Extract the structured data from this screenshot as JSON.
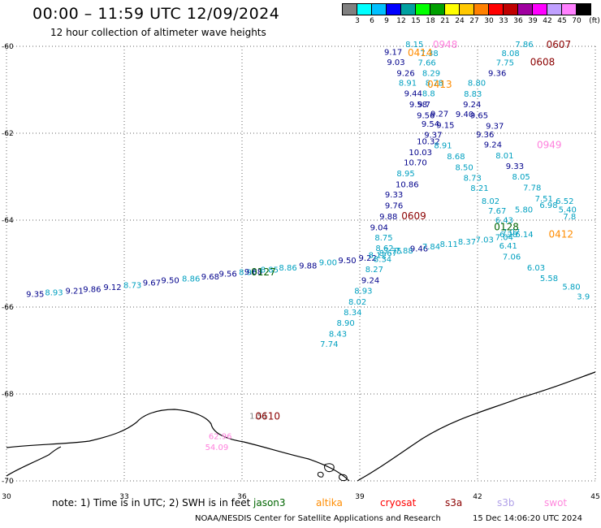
{
  "header": {
    "title": "00:00 – 11:59 UTC 12/09/2024",
    "subtitle": "12 hour collection of altimeter wave heights"
  },
  "legend": {
    "unit": "(ft)",
    "colors": [
      "#808080",
      "#00ffff",
      "#00c0ff",
      "#0000ff",
      "#00a0a0",
      "#00ff00",
      "#00a000",
      "#ffff00",
      "#ffc800",
      "#ff8000",
      "#ff0000",
      "#c00000",
      "#a000a0",
      "#ff00ff",
      "#c0a0ff",
      "#ff80ff",
      "#000000"
    ],
    "labels": [
      "3",
      "6",
      "9",
      "12",
      "15",
      "18",
      "21",
      "24",
      "27",
      "30",
      "33",
      "36",
      "39",
      "42",
      "45",
      "70"
    ]
  },
  "map": {
    "lon_range": [
      30,
      45
    ],
    "lat_range": [
      -60,
      -70
    ],
    "lon_ticks": [
      "30",
      "33",
      "36",
      "39",
      "42",
      "45"
    ],
    "lat_ticks": [
      "-60",
      "-62",
      "-64",
      "-66",
      "-68",
      "-70"
    ],
    "grid": "dotted"
  },
  "points": [
    {
      "lon": 30.5,
      "lat": -65.77,
      "v": "9.35",
      "c": "#00008b"
    },
    {
      "lon": 30.98,
      "lat": -65.73,
      "v": "8.93",
      "c": "#00a0c0"
    },
    {
      "lon": 31.5,
      "lat": -65.69,
      "v": "9.21",
      "c": "#00008b"
    },
    {
      "lon": 31.95,
      "lat": -65.65,
      "v": "9.86",
      "c": "#00008b"
    },
    {
      "lon": 32.47,
      "lat": -65.61,
      "v": "9.12",
      "c": "#00008b"
    },
    {
      "lon": 32.98,
      "lat": -65.56,
      "v": "8.73",
      "c": "#00a0c0"
    },
    {
      "lon": 33.47,
      "lat": -65.5,
      "v": "9.67",
      "c": "#00008b"
    },
    {
      "lon": 33.94,
      "lat": -65.45,
      "v": "9.50",
      "c": "#00008b"
    },
    {
      "lon": 34.47,
      "lat": -65.41,
      "v": "8.86",
      "c": "#00a0c0"
    },
    {
      "lon": 34.96,
      "lat": -65.36,
      "v": "9.68",
      "c": "#00008b"
    },
    {
      "lon": 35.41,
      "lat": -65.3,
      "v": "9.56",
      "c": "#00008b"
    },
    {
      "lon": 35.92,
      "lat": -65.26,
      "v": "8.96",
      "c": "#00a0c0"
    },
    {
      "lon": 36.06,
      "lat": -65.25,
      "v": "9.68",
      "c": "#00008b"
    },
    {
      "lon": 36.47,
      "lat": -65.21,
      "v": "8.85",
      "c": "#00a0c0"
    },
    {
      "lon": 36.94,
      "lat": -65.16,
      "v": "8.86",
      "c": "#00a0c0"
    },
    {
      "lon": 37.45,
      "lat": -65.11,
      "v": "9.88",
      "c": "#00008b"
    },
    {
      "lon": 37.96,
      "lat": -65.04,
      "v": "9.00",
      "c": "#00a0c0"
    },
    {
      "lon": 38.45,
      "lat": -64.99,
      "v": "9.50",
      "c": "#00008b"
    },
    {
      "lon": 38.97,
      "lat": -64.93,
      "v": "9.22",
      "c": "#00008b"
    },
    {
      "lon": 39.22,
      "lat": -64.87,
      "v": "8.12",
      "c": "#00a0c0"
    },
    {
      "lon": 39.49,
      "lat": -64.82,
      "v": "8.67",
      "c": "#00a0c0"
    },
    {
      "lon": 39.61,
      "lat": -64.78,
      "v": "7.75",
      "c": "#00a0c0"
    },
    {
      "lon": 39.9,
      "lat": -64.77,
      "v": "7.88",
      "c": "#00a0c0"
    },
    {
      "lon": 40.28,
      "lat": -64.72,
      "v": "9.46",
      "c": "#00008b"
    },
    {
      "lon": 40.59,
      "lat": -64.67,
      "v": "7.84",
      "c": "#00a0c0"
    },
    {
      "lon": 41.04,
      "lat": -64.62,
      "v": "8.11",
      "c": "#00a0c0"
    },
    {
      "lon": 41.5,
      "lat": -64.56,
      "v": "8.37",
      "c": "#00a0c0"
    },
    {
      "lon": 41.95,
      "lat": -64.51,
      "v": "7.03",
      "c": "#00a0c0"
    },
    {
      "lon": 42.45,
      "lat": -64.46,
      "v": "7.04",
      "c": "#00a0c0"
    },
    {
      "lon": 42.96,
      "lat": -64.39,
      "v": "6.14",
      "c": "#00a0c0"
    },
    {
      "lon": 40.16,
      "lat": -60.02,
      "v": "8.15",
      "c": "#00a0c0"
    },
    {
      "lon": 40.54,
      "lat": -60.22,
      "v": "7.38",
      "c": "#00a0c0"
    },
    {
      "lon": 39.62,
      "lat": -60.2,
      "v": "9.17",
      "c": "#00008b"
    },
    {
      "lon": 39.69,
      "lat": -60.43,
      "v": "9.03",
      "c": "#00008b"
    },
    {
      "lon": 40.48,
      "lat": -60.44,
      "v": "7.66",
      "c": "#00a0c0"
    },
    {
      "lon": 39.94,
      "lat": -60.68,
      "v": "9.26",
      "c": "#00008b"
    },
    {
      "lon": 40.59,
      "lat": -60.68,
      "v": "8.29",
      "c": "#00a0c0"
    },
    {
      "lon": 39.99,
      "lat": -60.91,
      "v": "8.91",
      "c": "#00a0c0"
    },
    {
      "lon": 40.67,
      "lat": -60.91,
      "v": "8.78",
      "c": "#00a0c0"
    },
    {
      "lon": 40.13,
      "lat": -61.15,
      "v": "9.44",
      "c": "#00008b"
    },
    {
      "lon": 40.59,
      "lat": -61.15,
      "v": "8.8",
      "c": "#00a0c0"
    },
    {
      "lon": 40.26,
      "lat": -61.4,
      "v": "9.58",
      "c": "#00008b"
    },
    {
      "lon": 40.47,
      "lat": -61.4,
      "v": "9.7",
      "c": "#00008b"
    },
    {
      "lon": 40.45,
      "lat": -61.65,
      "v": "9.56",
      "c": "#00008b"
    },
    {
      "lon": 40.8,
      "lat": -61.62,
      "v": "9.27",
      "c": "#00008b"
    },
    {
      "lon": 40.57,
      "lat": -61.85,
      "v": "9.54",
      "c": "#00008b"
    },
    {
      "lon": 40.95,
      "lat": -61.88,
      "v": "9.15",
      "c": "#00008b"
    },
    {
      "lon": 40.64,
      "lat": -62.1,
      "v": "9.37",
      "c": "#00008b"
    },
    {
      "lon": 40.45,
      "lat": -62.25,
      "v": "10.32",
      "c": "#00008b"
    },
    {
      "lon": 40.89,
      "lat": -62.35,
      "v": "8.91",
      "c": "#00a0c0"
    },
    {
      "lon": 40.25,
      "lat": -62.5,
      "v": "10.03",
      "c": "#00008b"
    },
    {
      "lon": 40.12,
      "lat": -62.74,
      "v": "10.70",
      "c": "#00008b"
    },
    {
      "lon": 39.94,
      "lat": -62.99,
      "v": "8.95",
      "c": "#00a0c0"
    },
    {
      "lon": 39.91,
      "lat": -63.24,
      "v": "10.86",
      "c": "#00008b"
    },
    {
      "lon": 39.64,
      "lat": -63.48,
      "v": "9.33",
      "c": "#00008b"
    },
    {
      "lon": 39.64,
      "lat": -63.73,
      "v": "9.76",
      "c": "#00008b"
    },
    {
      "lon": 39.5,
      "lat": -63.98,
      "v": "9.88",
      "c": "#00008b"
    },
    {
      "lon": 39.26,
      "lat": -64.23,
      "v": "9.04",
      "c": "#00008b"
    },
    {
      "lon": 39.38,
      "lat": -64.47,
      "v": "8.75",
      "c": "#00a0c0"
    },
    {
      "lon": 39.4,
      "lat": -64.71,
      "v": "8.62",
      "c": "#00a0c0"
    },
    {
      "lon": 39.35,
      "lat": -64.96,
      "v": "8.34",
      "c": "#00a0c0"
    },
    {
      "lon": 39.14,
      "lat": -65.2,
      "v": "8.27",
      "c": "#00a0c0"
    },
    {
      "lon": 39.04,
      "lat": -65.45,
      "v": "9.24",
      "c": "#00008b"
    },
    {
      "lon": 38.86,
      "lat": -65.69,
      "v": "8.93",
      "c": "#00a0c0"
    },
    {
      "lon": 38.71,
      "lat": -65.94,
      "v": "8.02",
      "c": "#00a0c0"
    },
    {
      "lon": 38.59,
      "lat": -66.19,
      "v": "8.34",
      "c": "#00a0c0"
    },
    {
      "lon": 38.41,
      "lat": -66.43,
      "v": "8.90",
      "c": "#00a0c0"
    },
    {
      "lon": 38.21,
      "lat": -66.68,
      "v": "8.43",
      "c": "#00a0c0"
    },
    {
      "lon": 37.99,
      "lat": -66.92,
      "v": "7.74",
      "c": "#00a0c0"
    },
    {
      "lon": 42.96,
      "lat": -60.02,
      "v": "7.86",
      "c": "#00a0c0"
    },
    {
      "lon": 42.61,
      "lat": -60.22,
      "v": "8.08",
      "c": "#00a0c0"
    },
    {
      "lon": 42.47,
      "lat": -60.44,
      "v": "7.75",
      "c": "#00a0c0"
    },
    {
      "lon": 42.27,
      "lat": -60.68,
      "v": "9.36",
      "c": "#00008b"
    },
    {
      "lon": 41.75,
      "lat": -60.91,
      "v": "8.80",
      "c": "#00a0c0"
    },
    {
      "lon": 41.65,
      "lat": -61.16,
      "v": "8.83",
      "c": "#00a0c0"
    },
    {
      "lon": 41.63,
      "lat": -61.4,
      "v": "9.24",
      "c": "#00008b"
    },
    {
      "lon": 41.81,
      "lat": -61.65,
      "v": "9.65",
      "c": "#00008b"
    },
    {
      "lon": 41.44,
      "lat": -61.63,
      "v": "9.40",
      "c": "#00008b"
    },
    {
      "lon": 42.21,
      "lat": -61.9,
      "v": "9.37",
      "c": "#00008b"
    },
    {
      "lon": 41.96,
      "lat": -62.09,
      "v": "9.36",
      "c": "#00008b"
    },
    {
      "lon": 42.16,
      "lat": -62.33,
      "v": "9.24",
      "c": "#00008b"
    },
    {
      "lon": 41.22,
      "lat": -62.6,
      "v": "8.68",
      "c": "#00a0c0"
    },
    {
      "lon": 42.46,
      "lat": -62.58,
      "v": "8.01",
      "c": "#00a0c0"
    },
    {
      "lon": 41.43,
      "lat": -62.85,
      "v": "8.50",
      "c": "#00a0c0"
    },
    {
      "lon": 42.72,
      "lat": -62.82,
      "v": "9.33",
      "c": "#00008b"
    },
    {
      "lon": 41.64,
      "lat": -63.09,
      "v": "8.73",
      "c": "#00a0c0"
    },
    {
      "lon": 43.16,
      "lat": -63.32,
      "v": "7.78",
      "c": "#00a0c0"
    },
    {
      "lon": 42.88,
      "lat": -63.07,
      "v": "8.05",
      "c": "#00a0c0"
    },
    {
      "lon": 41.82,
      "lat": -63.33,
      "v": "8.21",
      "c": "#00a0c0"
    },
    {
      "lon": 43.46,
      "lat": -63.57,
      "v": "7.51",
      "c": "#00a0c0"
    },
    {
      "lon": 42.1,
      "lat": -63.63,
      "v": "8.02",
      "c": "#00a0c0"
    },
    {
      "lon": 43.58,
      "lat": -63.72,
      "v": "6.98",
      "c": "#00a0c0"
    },
    {
      "lon": 43.99,
      "lat": -63.63,
      "v": "6.52",
      "c": "#00a0c0"
    },
    {
      "lon": 42.95,
      "lat": -63.82,
      "v": "5.80",
      "c": "#00a0c0"
    },
    {
      "lon": 44.06,
      "lat": -63.82,
      "v": "5.40",
      "c": "#00a0c0"
    },
    {
      "lon": 42.27,
      "lat": -63.85,
      "v": "7.67",
      "c": "#00a0c0"
    },
    {
      "lon": 44.18,
      "lat": -63.98,
      "v": "7.8",
      "c": "#00a0c0"
    },
    {
      "lon": 42.45,
      "lat": -64.07,
      "v": "6.43",
      "c": "#00a0c0"
    },
    {
      "lon": 42.62,
      "lat": -64.34,
      "v": "7.07",
      "c": "#00a0c0"
    },
    {
      "lon": 42.56,
      "lat": -64.39,
      "v": "6.28",
      "c": "#00a0c0"
    },
    {
      "lon": 42.55,
      "lat": -64.65,
      "v": "6.41",
      "c": "#00a0c0"
    },
    {
      "lon": 42.64,
      "lat": -64.91,
      "v": "7.06",
      "c": "#00a0c0"
    },
    {
      "lon": 43.26,
      "lat": -65.16,
      "v": "6.03",
      "c": "#00a0c0"
    },
    {
      "lon": 43.59,
      "lat": -65.4,
      "v": "5.58",
      "c": "#00a0c0"
    },
    {
      "lon": 44.16,
      "lat": -65.6,
      "v": "5.80",
      "c": "#00a0c0"
    },
    {
      "lon": 44.53,
      "lat": -65.82,
      "v": "3.9",
      "c": "#00a0c0"
    },
    {
      "lon": 36.19,
      "lat": -68.57,
      "v": "1.51",
      "c": "#808080"
    },
    {
      "lon": 35.15,
      "lat": -69.04,
      "v": "62.96",
      "c": "#ff80dd"
    },
    {
      "lon": 35.06,
      "lat": -69.29,
      "v": "54.09",
      "c": "#ff80dd"
    }
  ],
  "passes": [
    {
      "lon": 40.86,
      "lat": -60.04,
      "t": "0948",
      "c": "#ff80dd"
    },
    {
      "lon": 43.75,
      "lat": -60.04,
      "t": "0607",
      "c": "#8b0000"
    },
    {
      "lon": 40.22,
      "lat": -60.22,
      "t": "0414",
      "c": "#ff8c00"
    },
    {
      "lon": 43.34,
      "lat": -60.44,
      "t": "0608",
      "c": "#8b0000"
    },
    {
      "lon": 40.72,
      "lat": -60.95,
      "t": "0413",
      "c": "#ff8c00"
    },
    {
      "lon": 43.51,
      "lat": -62.35,
      "t": "0949",
      "c": "#ff80dd"
    },
    {
      "lon": 40.06,
      "lat": -63.98,
      "t": "0609",
      "c": "#8b0000"
    },
    {
      "lon": 42.42,
      "lat": -64.23,
      "t": "0128",
      "c": "#006400"
    },
    {
      "lon": 43.81,
      "lat": -64.4,
      "t": "0412",
      "c": "#ff8c00"
    },
    {
      "lon": 36.23,
      "lat": -65.27,
      "t": "0127",
      "c": "#006400"
    },
    {
      "lon": 36.34,
      "lat": -68.59,
      "t": "0610",
      "c": "#8b0000"
    }
  ],
  "note": {
    "text": "note:  1) Time is in UTC;  2) SWH is in feet",
    "sat_jason3": "jason3",
    "sat_altika": "altika",
    "sat_cryosat": "cryosat",
    "sat_s3a": "s3a",
    "sat_s3b": "s3b",
    "sat_swot": "swot"
  },
  "footer": {
    "credit": "NOAA/NESDIS Center for Satellite Applications and Research",
    "timestamp": "15 Dec 14:06:20 UTC 2024"
  }
}
